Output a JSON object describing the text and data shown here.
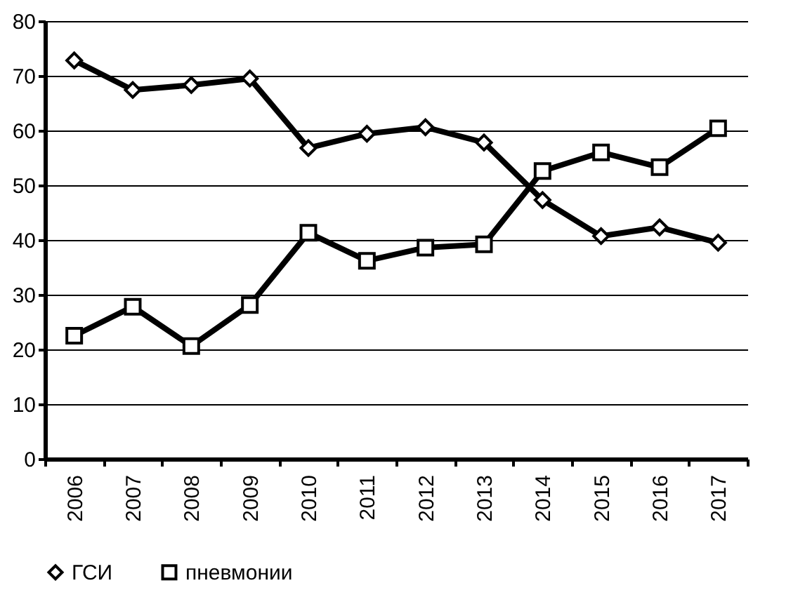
{
  "chart_data": {
    "type": "line",
    "categories": [
      "2006",
      "2007",
      "2008",
      "2009",
      "2010",
      "2011",
      "2012",
      "2013",
      "2014",
      "2015",
      "2016",
      "2017"
    ],
    "series": [
      {
        "name": "ГСИ",
        "color": "#000000",
        "marker": "diamond",
        "values": [
          72.8,
          67.4,
          68.3,
          69.5,
          56.8,
          59.4,
          60.6,
          57.8,
          47.3,
          40.7,
          42.3,
          39.5
        ]
      },
      {
        "name": "пневмонии",
        "color": "#000000",
        "marker": "square",
        "values": [
          22.5,
          27.8,
          20.6,
          28.1,
          41.3,
          36.2,
          38.6,
          39.2,
          52.6,
          56.0,
          53.3,
          60.4
        ]
      }
    ],
    "ylim": [
      0,
      80
    ],
    "yticks": [
      0,
      10,
      20,
      30,
      40,
      50,
      60,
      70,
      80
    ],
    "grid": "y",
    "legend": "bottom",
    "line_style": "solid"
  }
}
